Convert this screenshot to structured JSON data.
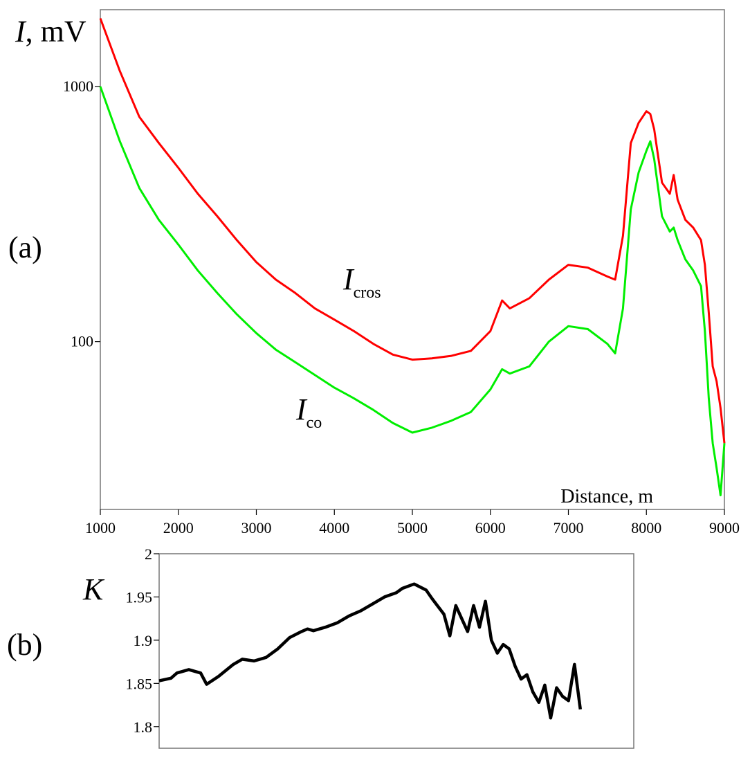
{
  "chart_data": [
    {
      "panel_label": "(a)",
      "type": "line",
      "ylabel_var": "I",
      "ylabel_unit": ", mV",
      "xlabel": "Distance, m",
      "yscale": "log",
      "xlim": [
        1000,
        9000
      ],
      "ylim": [
        22,
        2000
      ],
      "x_ticks": [
        "1000",
        "2000",
        "3000",
        "4000",
        "5000",
        "6000",
        "7000",
        "8000",
        "9000"
      ],
      "y_ticks": [
        {
          "value": 100,
          "label": "100"
        },
        {
          "value": 1000,
          "label": "1000"
        }
      ],
      "grid": false,
      "series": [
        {
          "name_main": "I",
          "name_sub": "cros",
          "color": "#ff0000",
          "x": [
            1000,
            1250,
            1500,
            1750,
            2000,
            2250,
            2500,
            2750,
            3000,
            3250,
            3500,
            3750,
            4000,
            4250,
            4500,
            4750,
            5000,
            5250,
            5500,
            5750,
            6000,
            6150,
            6250,
            6500,
            6750,
            7000,
            7250,
            7500,
            7600,
            7700,
            7800,
            7900,
            8000,
            8050,
            8100,
            8200,
            8300,
            8350,
            8400,
            8500,
            8600,
            8700,
            8750,
            8800,
            8850,
            8900,
            8950,
            9000
          ],
          "y": [
            1850,
            1150,
            760,
            600,
            480,
            380,
            310,
            250,
            205,
            175,
            155,
            135,
            122,
            110,
            98,
            89,
            85,
            86,
            88,
            92,
            110,
            145,
            135,
            148,
            175,
            200,
            195,
            180,
            175,
            260,
            600,
            720,
            800,
            780,
            680,
            420,
            380,
            450,
            360,
            300,
            280,
            250,
            200,
            130,
            80,
            70,
            55,
            40
          ]
        },
        {
          "name_main": "I",
          "name_sub": "co",
          "color": "#00ee00",
          "x": [
            1000,
            1250,
            1500,
            1750,
            2000,
            2250,
            2500,
            2750,
            3000,
            3250,
            3500,
            3750,
            4000,
            4250,
            4500,
            4750,
            5000,
            5250,
            5500,
            5750,
            6000,
            6150,
            6250,
            6500,
            6750,
            7000,
            7250,
            7500,
            7600,
            7700,
            7800,
            7900,
            8000,
            8050,
            8100,
            8200,
            8300,
            8350,
            8400,
            8500,
            8600,
            8700,
            8750,
            8800,
            8850,
            8900,
            8950,
            9000
          ],
          "y": [
            1000,
            610,
            400,
            300,
            240,
            190,
            155,
            128,
            108,
            93,
            83,
            74,
            66,
            60,
            54,
            48,
            44,
            46,
            49,
            53,
            65,
            78,
            75,
            80,
            100,
            115,
            112,
            98,
            90,
            135,
            330,
            460,
            560,
            610,
            520,
            310,
            270,
            280,
            250,
            210,
            190,
            165,
            110,
            60,
            40,
            32,
            25,
            40
          ]
        }
      ]
    },
    {
      "panel_label": "(b)",
      "type": "line",
      "ylabel": "K",
      "xlim": [
        1000,
        9000
      ],
      "ylim": [
        1.775,
        2.0
      ],
      "y_ticks": [
        "1.8",
        "1.85",
        "1.9",
        "1.95",
        "2"
      ],
      "grid": false,
      "series": [
        {
          "color": "#000000",
          "x": [
            1000,
            1200,
            1300,
            1500,
            1700,
            1800,
            2000,
            2250,
            2400,
            2600,
            2800,
            3000,
            3200,
            3400,
            3500,
            3600,
            3800,
            4000,
            4200,
            4400,
            4600,
            4800,
            5000,
            5100,
            5300,
            5500,
            5600,
            5800,
            5900,
            6000,
            6100,
            6200,
            6300,
            6400,
            6500,
            6600,
            6700,
            6800,
            6900,
            7000,
            7100,
            7200,
            7300,
            7400,
            7500,
            7600,
            7700,
            7800,
            7900,
            8000,
            8100
          ],
          "y": [
            1.853,
            1.856,
            1.862,
            1.866,
            1.862,
            1.849,
            1.858,
            1.872,
            1.878,
            1.876,
            1.88,
            1.89,
            1.903,
            1.91,
            1.913,
            1.911,
            1.915,
            1.92,
            1.928,
            1.934,
            1.942,
            1.95,
            1.955,
            1.96,
            1.965,
            1.958,
            1.948,
            1.93,
            1.905,
            1.94,
            1.925,
            1.91,
            1.94,
            1.915,
            1.945,
            1.9,
            1.885,
            1.895,
            1.89,
            1.87,
            1.855,
            1.86,
            1.84,
            1.828,
            1.848,
            1.81,
            1.845,
            1.835,
            1.83,
            1.872,
            1.82
          ]
        }
      ]
    }
  ]
}
